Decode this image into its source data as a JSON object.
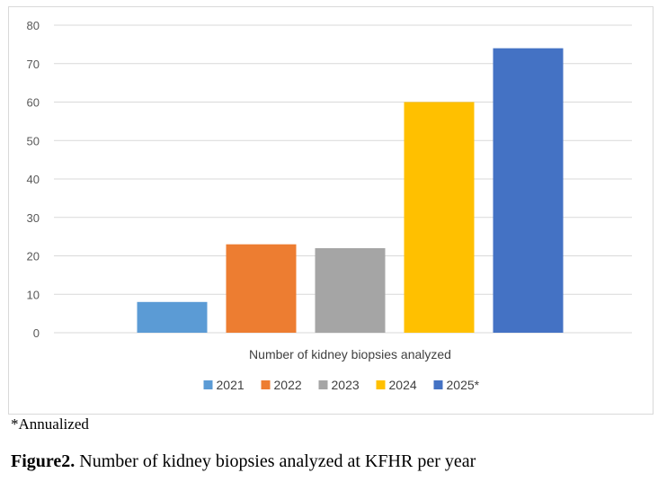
{
  "chart_data": {
    "type": "bar",
    "title": "",
    "xlabel": "Number of kidney biopsies analyzed",
    "ylabel": "",
    "ylim": [
      0,
      80
    ],
    "yticks": [
      0,
      10,
      20,
      30,
      40,
      50,
      60,
      70,
      80
    ],
    "grid": true,
    "legend_position": "bottom",
    "categories": [
      "Number of kidney biopsies analyzed"
    ],
    "series": [
      {
        "name": "2021",
        "values": [
          8
        ],
        "color": "#5b9bd5"
      },
      {
        "name": "2022",
        "values": [
          23
        ],
        "color": "#ed7d31"
      },
      {
        "name": "2023",
        "values": [
          22
        ],
        "color": "#a5a5a5"
      },
      {
        "name": "2024",
        "values": [
          60
        ],
        "color": "#ffc000"
      },
      {
        "name": "2025*",
        "values": [
          74
        ],
        "color": "#4472c4"
      }
    ]
  },
  "annotation": "*Annualized",
  "caption": {
    "label": "Figure2.",
    "text": " Number of kidney biopsies analyzed at KFHR per year"
  }
}
